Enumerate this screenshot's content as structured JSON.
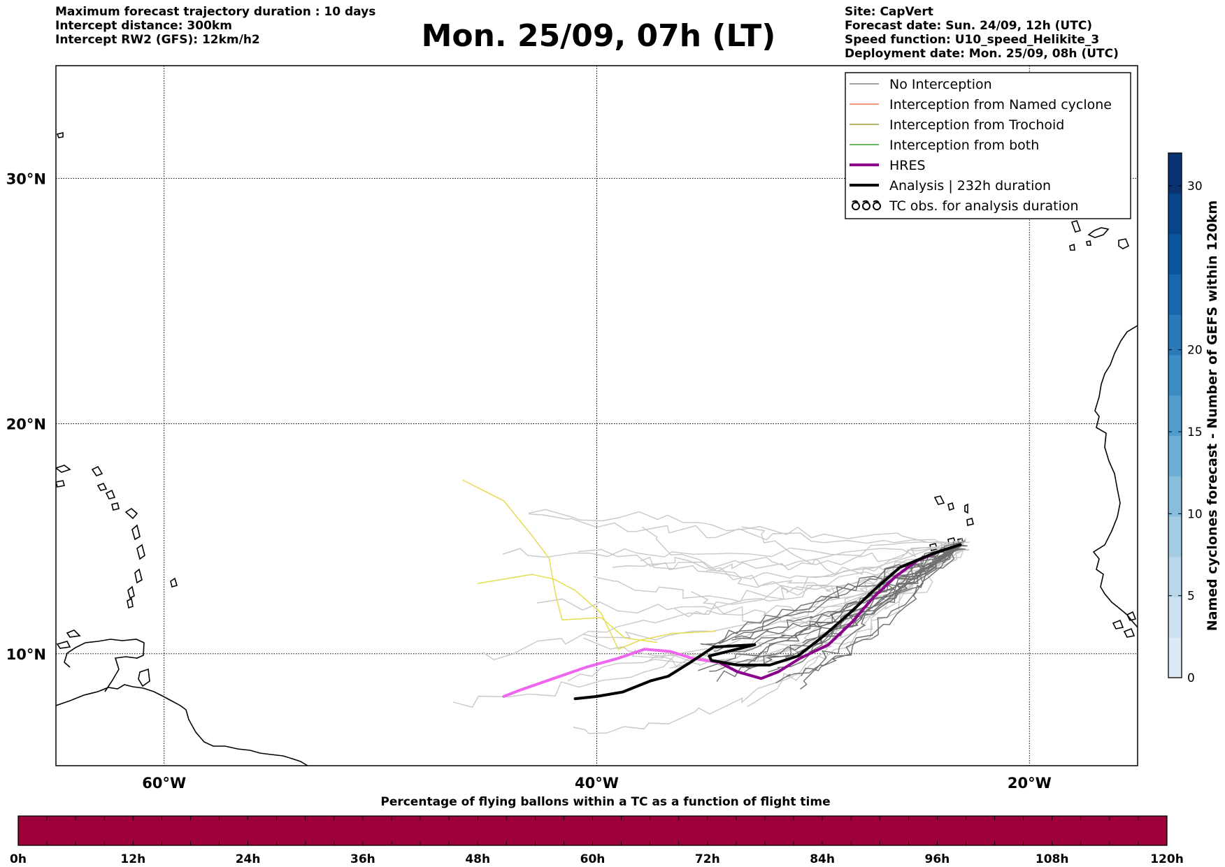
{
  "header": {
    "left_lines": [
      "Maximum forecast trajectory duration : 10 days",
      "Intercept distance: 300km",
      "Intercept RW2 (GFS):  12km/h2"
    ],
    "title": "Mon. 25/09, 07h (LT)",
    "right_lines": [
      "Site: CapVert",
      "Forecast date: Sun. 24/09, 12h (UTC)",
      "Speed function: U10_speed_Helikite_3",
      "Deployment date: Mon. 25/09, 08h (UTC)"
    ]
  },
  "map": {
    "lon_range": [
      -65,
      -15
    ],
    "lat_range": [
      5,
      34.3
    ],
    "lat_labels": [
      "30°N",
      "20°N",
      "10°N"
    ],
    "lat_values": [
      30,
      20,
      10
    ],
    "lon_labels": [
      "60°W",
      "40°W",
      "20°W"
    ],
    "lon_values": [
      -60,
      -40,
      -20
    ]
  },
  "legend": {
    "items": [
      {
        "label": "No Interception",
        "color": "#808080",
        "style": "thin"
      },
      {
        "label": "Interception from Named cyclone",
        "color": "#f07850",
        "style": "thin"
      },
      {
        "label": "Interception from Trochoid",
        "color": "#999933",
        "style": "thin"
      },
      {
        "label": "Interception from both",
        "color": "#33a02c",
        "style": "thin"
      },
      {
        "label": "HRES",
        "color": "#8b008b",
        "style": "thick"
      },
      {
        "label": "Analysis | 232h duration",
        "color": "#000000",
        "style": "thick"
      },
      {
        "label": "TC obs. for analysis duration",
        "color": "#000000",
        "style": "cyclone-icon"
      }
    ]
  },
  "colorbar_right": {
    "label": "Named cyclones forecast - Number of GEFS within 120km",
    "min": 0,
    "max": 32,
    "tick_values": [
      0,
      5,
      10,
      15,
      20,
      30
    ],
    "tick_labels": [
      "0",
      "5",
      "10",
      "15",
      "20",
      "30"
    ],
    "colors": [
      "#dbe9f6",
      "#cee0f2",
      "#bad6eb",
      "#a3cce3",
      "#88bedc",
      "#6baed6",
      "#529dcc",
      "#3d8dc4",
      "#2a7ab9",
      "#1966ad",
      "#0b559f",
      "#08468b",
      "#083370"
    ]
  },
  "colorbar_bottom": {
    "title": "Percentage of flying ballons within a TC as a function of flight time",
    "tick_labels": [
      "0h",
      "12h",
      "24h",
      "36h",
      "48h",
      "60h",
      "72h",
      "84h",
      "96h",
      "108h",
      "120h"
    ],
    "fill_color": "#9e003a",
    "hours": [
      0,
      120
    ]
  },
  "tracks": {
    "hres": {
      "color": "#8b008b",
      "faded_color": "#ee66ee",
      "points": [
        [
          -23.2,
          14.8
        ],
        [
          -24.2,
          14.5
        ],
        [
          -25.2,
          14.1
        ],
        [
          -26.2,
          13.4
        ],
        [
          -27.2,
          12.5
        ],
        [
          -28.2,
          11.4
        ],
        [
          -29.3,
          10.4
        ],
        [
          -30.6,
          9.8
        ],
        [
          -31.6,
          9.2
        ],
        [
          -32.4,
          8.9
        ],
        [
          -33.5,
          9.2
        ],
        [
          -34.3,
          9.6
        ],
        [
          -35.6,
          9.8
        ],
        [
          -36.6,
          10.1
        ],
        [
          -37.8,
          10.2
        ],
        [
          -39.0,
          9.8
        ],
        [
          -40.5,
          9.4
        ],
        [
          -42.0,
          8.9
        ],
        [
          -43.5,
          8.4
        ],
        [
          -44.3,
          8.1
        ]
      ]
    },
    "analysis": {
      "color": "#000000",
      "points": [
        [
          -23.2,
          14.8
        ],
        [
          -24.5,
          14.4
        ],
        [
          -26.0,
          13.8
        ],
        [
          -27.2,
          12.8
        ],
        [
          -28.3,
          11.8
        ],
        [
          -29.5,
          10.8
        ],
        [
          -30.7,
          9.9
        ],
        [
          -32.0,
          9.5
        ],
        [
          -33.5,
          9.5
        ],
        [
          -34.7,
          9.7
        ],
        [
          -34.8,
          9.9
        ],
        [
          -32.7,
          10.4
        ],
        [
          -34.6,
          10.3
        ],
        [
          -35.7,
          9.6
        ],
        [
          -36.7,
          9.0
        ],
        [
          -37.5,
          8.8
        ],
        [
          -38.8,
          8.3
        ],
        [
          -40.0,
          8.1
        ],
        [
          -41.0,
          8.0
        ]
      ]
    },
    "gray_count": 18,
    "light_count": 24,
    "yellow_count": 2
  }
}
